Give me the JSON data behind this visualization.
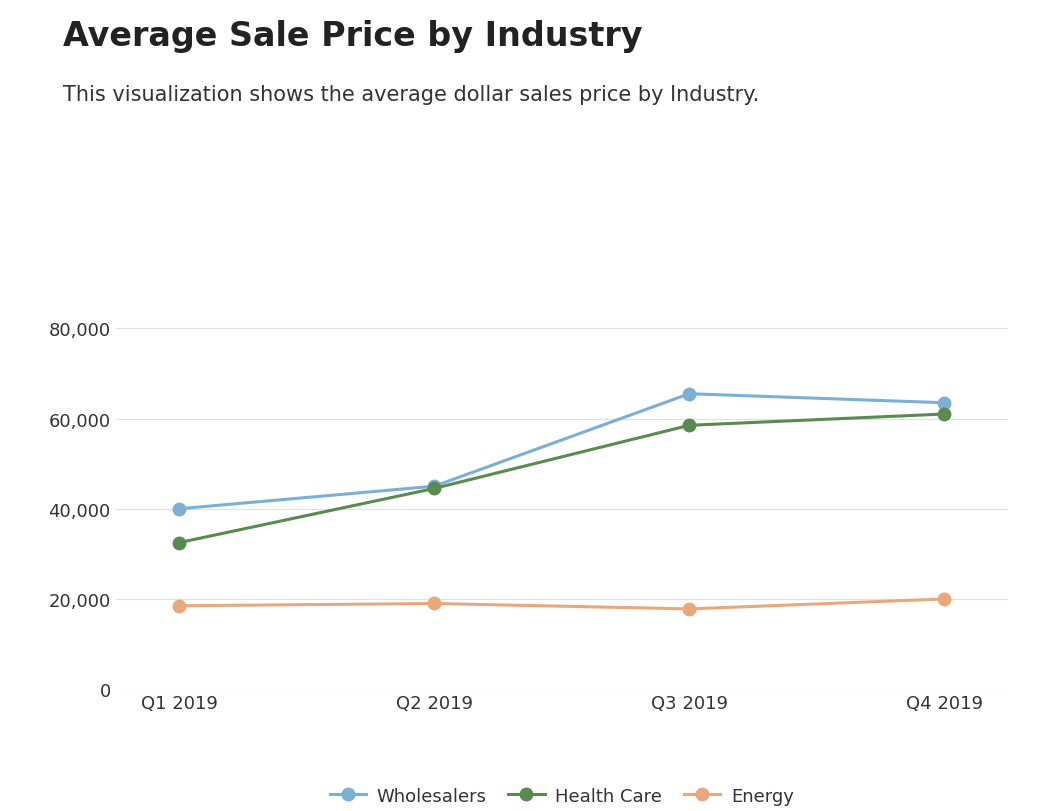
{
  "title": "Average Sale Price by Industry",
  "subtitle": "This visualization shows the average dollar sales price by Industry.",
  "quarters": [
    "Q1 2019",
    "Q2 2019",
    "Q3 2019",
    "Q4 2019"
  ],
  "series": [
    {
      "name": "Wholesalers",
      "values": [
        40000,
        45000,
        65500,
        63500
      ],
      "color": "#7bafd4",
      "marker": "o"
    },
    {
      "name": "Health Care",
      "values": [
        32500,
        44500,
        58500,
        61000
      ],
      "color": "#5a8a50",
      "marker": "o"
    },
    {
      "name": "Energy",
      "values": [
        18500,
        19000,
        17800,
        20000
      ],
      "color": "#e8a87c",
      "marker": "o"
    }
  ],
  "ylim": [
    0,
    90000
  ],
  "yticks": [
    0,
    20000,
    40000,
    60000,
    80000
  ],
  "background_color": "#ffffff",
  "title_fontsize": 24,
  "subtitle_fontsize": 15,
  "tick_fontsize": 13,
  "legend_fontsize": 13,
  "title_color": "#222222",
  "subtitle_color": "#333333",
  "tick_color": "#333333",
  "grid_color": "#e0e0e0",
  "line_width": 2.2,
  "marker_size": 9
}
